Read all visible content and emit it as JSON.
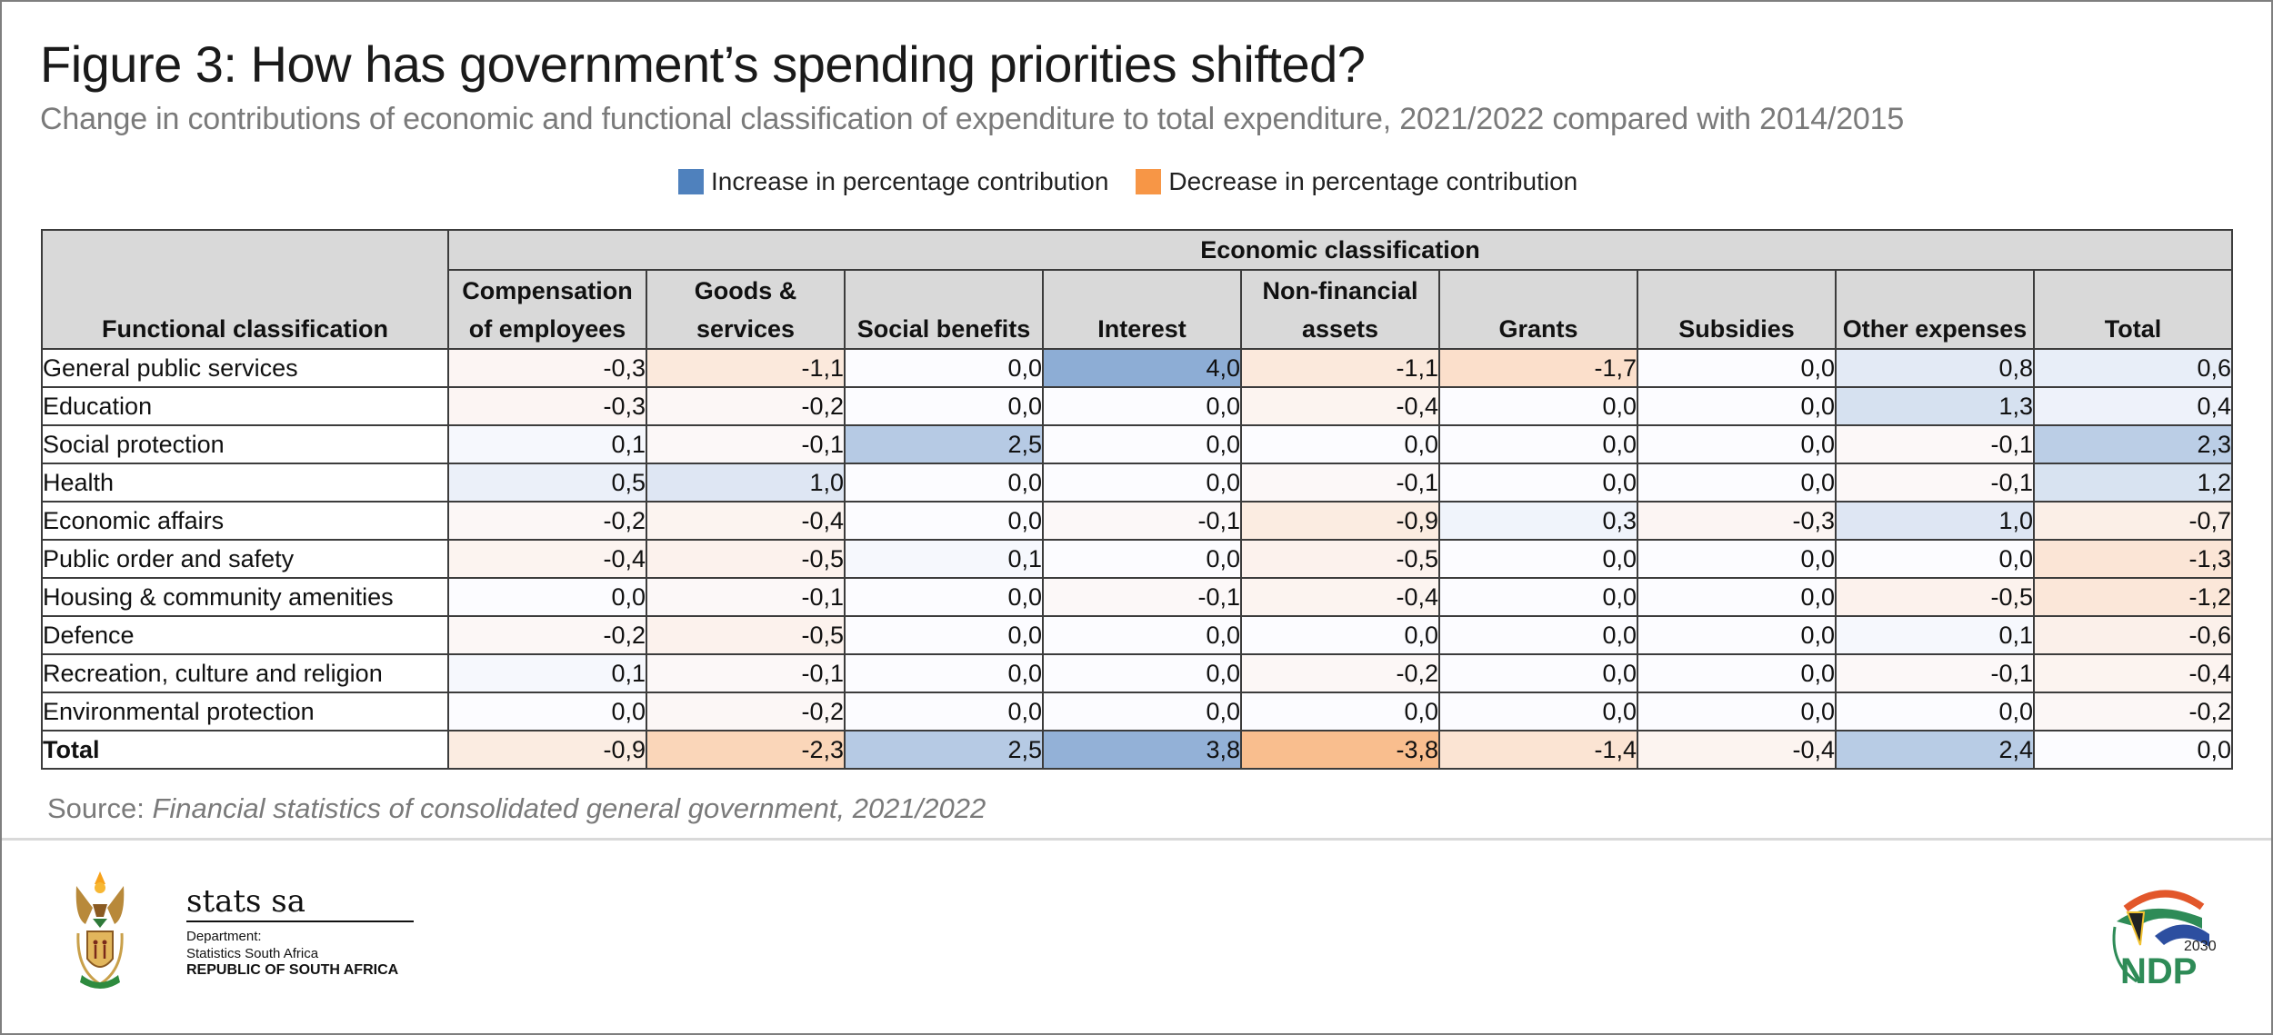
{
  "header": {
    "title": "Figure 3: How has government’s spending priorities shifted?",
    "subtitle": "Change in contributions of economic and functional classification of expenditure to total expenditure, 2021/2022 compared with 2014/2015"
  },
  "legend": [
    {
      "label": "Increase in percentage contribution",
      "color": "#4f81bd"
    },
    {
      "label": "Decrease in percentage contribution",
      "color": "#f79646"
    }
  ],
  "chart_data": {
    "type": "heatmap",
    "title": "Figure 3: How has government’s spending priorities shifted?",
    "subtitle": "Change in contributions of economic and functional classification of expenditure to total expenditure, 2021/2022 compared with 2014/2015",
    "row_header": "Functional classification",
    "column_group_header": "Economic classification",
    "columns": [
      [
        "Compensation",
        "of employees"
      ],
      [
        "Goods &",
        "services"
      ],
      [
        "",
        "Social benefits"
      ],
      [
        "",
        "Interest"
      ],
      [
        "Non-financial",
        "assets"
      ],
      [
        "",
        "Grants"
      ],
      [
        "",
        "Subsidies"
      ],
      [
        "",
        "Other expenses"
      ],
      [
        "",
        "Total"
      ]
    ],
    "rows": [
      {
        "label": "General public services",
        "values": [
          -0.3,
          -1.1,
          0.0,
          4.0,
          -1.1,
          -1.7,
          0.0,
          0.8,
          0.6
        ]
      },
      {
        "label": "Education",
        "values": [
          -0.3,
          -0.2,
          0.0,
          0.0,
          -0.4,
          0.0,
          0.0,
          1.3,
          0.4
        ]
      },
      {
        "label": "Social protection",
        "values": [
          0.1,
          -0.1,
          2.5,
          0.0,
          0.0,
          0.0,
          0.0,
          -0.1,
          2.3
        ]
      },
      {
        "label": "Health",
        "values": [
          0.5,
          1.0,
          0.0,
          0.0,
          -0.1,
          0.0,
          0.0,
          -0.1,
          1.2
        ]
      },
      {
        "label": "Economic affairs",
        "values": [
          -0.2,
          -0.4,
          0.0,
          -0.1,
          -0.9,
          0.3,
          -0.3,
          1.0,
          -0.7
        ]
      },
      {
        "label": "Public order and safety",
        "values": [
          -0.4,
          -0.5,
          0.1,
          0.0,
          -0.5,
          0.0,
          0.0,
          0.0,
          -1.3
        ]
      },
      {
        "label": "Housing & community amenities",
        "values": [
          0.0,
          -0.1,
          0.0,
          -0.1,
          -0.4,
          0.0,
          0.0,
          -0.5,
          -1.2
        ]
      },
      {
        "label": "Defence",
        "values": [
          -0.2,
          -0.5,
          0.0,
          0.0,
          0.0,
          0.0,
          0.0,
          0.1,
          -0.6
        ]
      },
      {
        "label": "Recreation, culture and religion",
        "values": [
          0.1,
          -0.1,
          0.0,
          0.0,
          -0.2,
          0.0,
          0.0,
          -0.1,
          -0.4
        ]
      },
      {
        "label": "Environmental protection",
        "values": [
          0.0,
          -0.2,
          0.0,
          0.0,
          0.0,
          0.0,
          0.0,
          0.0,
          -0.2
        ]
      },
      {
        "label": "Total",
        "values": [
          -0.9,
          -2.3,
          2.5,
          3.8,
          -3.8,
          -1.4,
          -0.4,
          2.4,
          0.0
        ],
        "bold": true
      }
    ],
    "decimal_separator": ",",
    "color_scale": {
      "positive": "#4f81bd",
      "negative": "#f79646",
      "neutral": "#ffffff"
    }
  },
  "footer": {
    "source_prefix": "Source: ",
    "source_text": "Financial statistics of consolidated general government, 2021/2022",
    "stats_logo": {
      "name": "stats sa",
      "line1": "Department:",
      "line2": "Statistics South Africa",
      "line3": "REPUBLIC OF SOUTH AFRICA"
    },
    "ndp_logo": {
      "year": "2030",
      "name": "NDP"
    }
  }
}
